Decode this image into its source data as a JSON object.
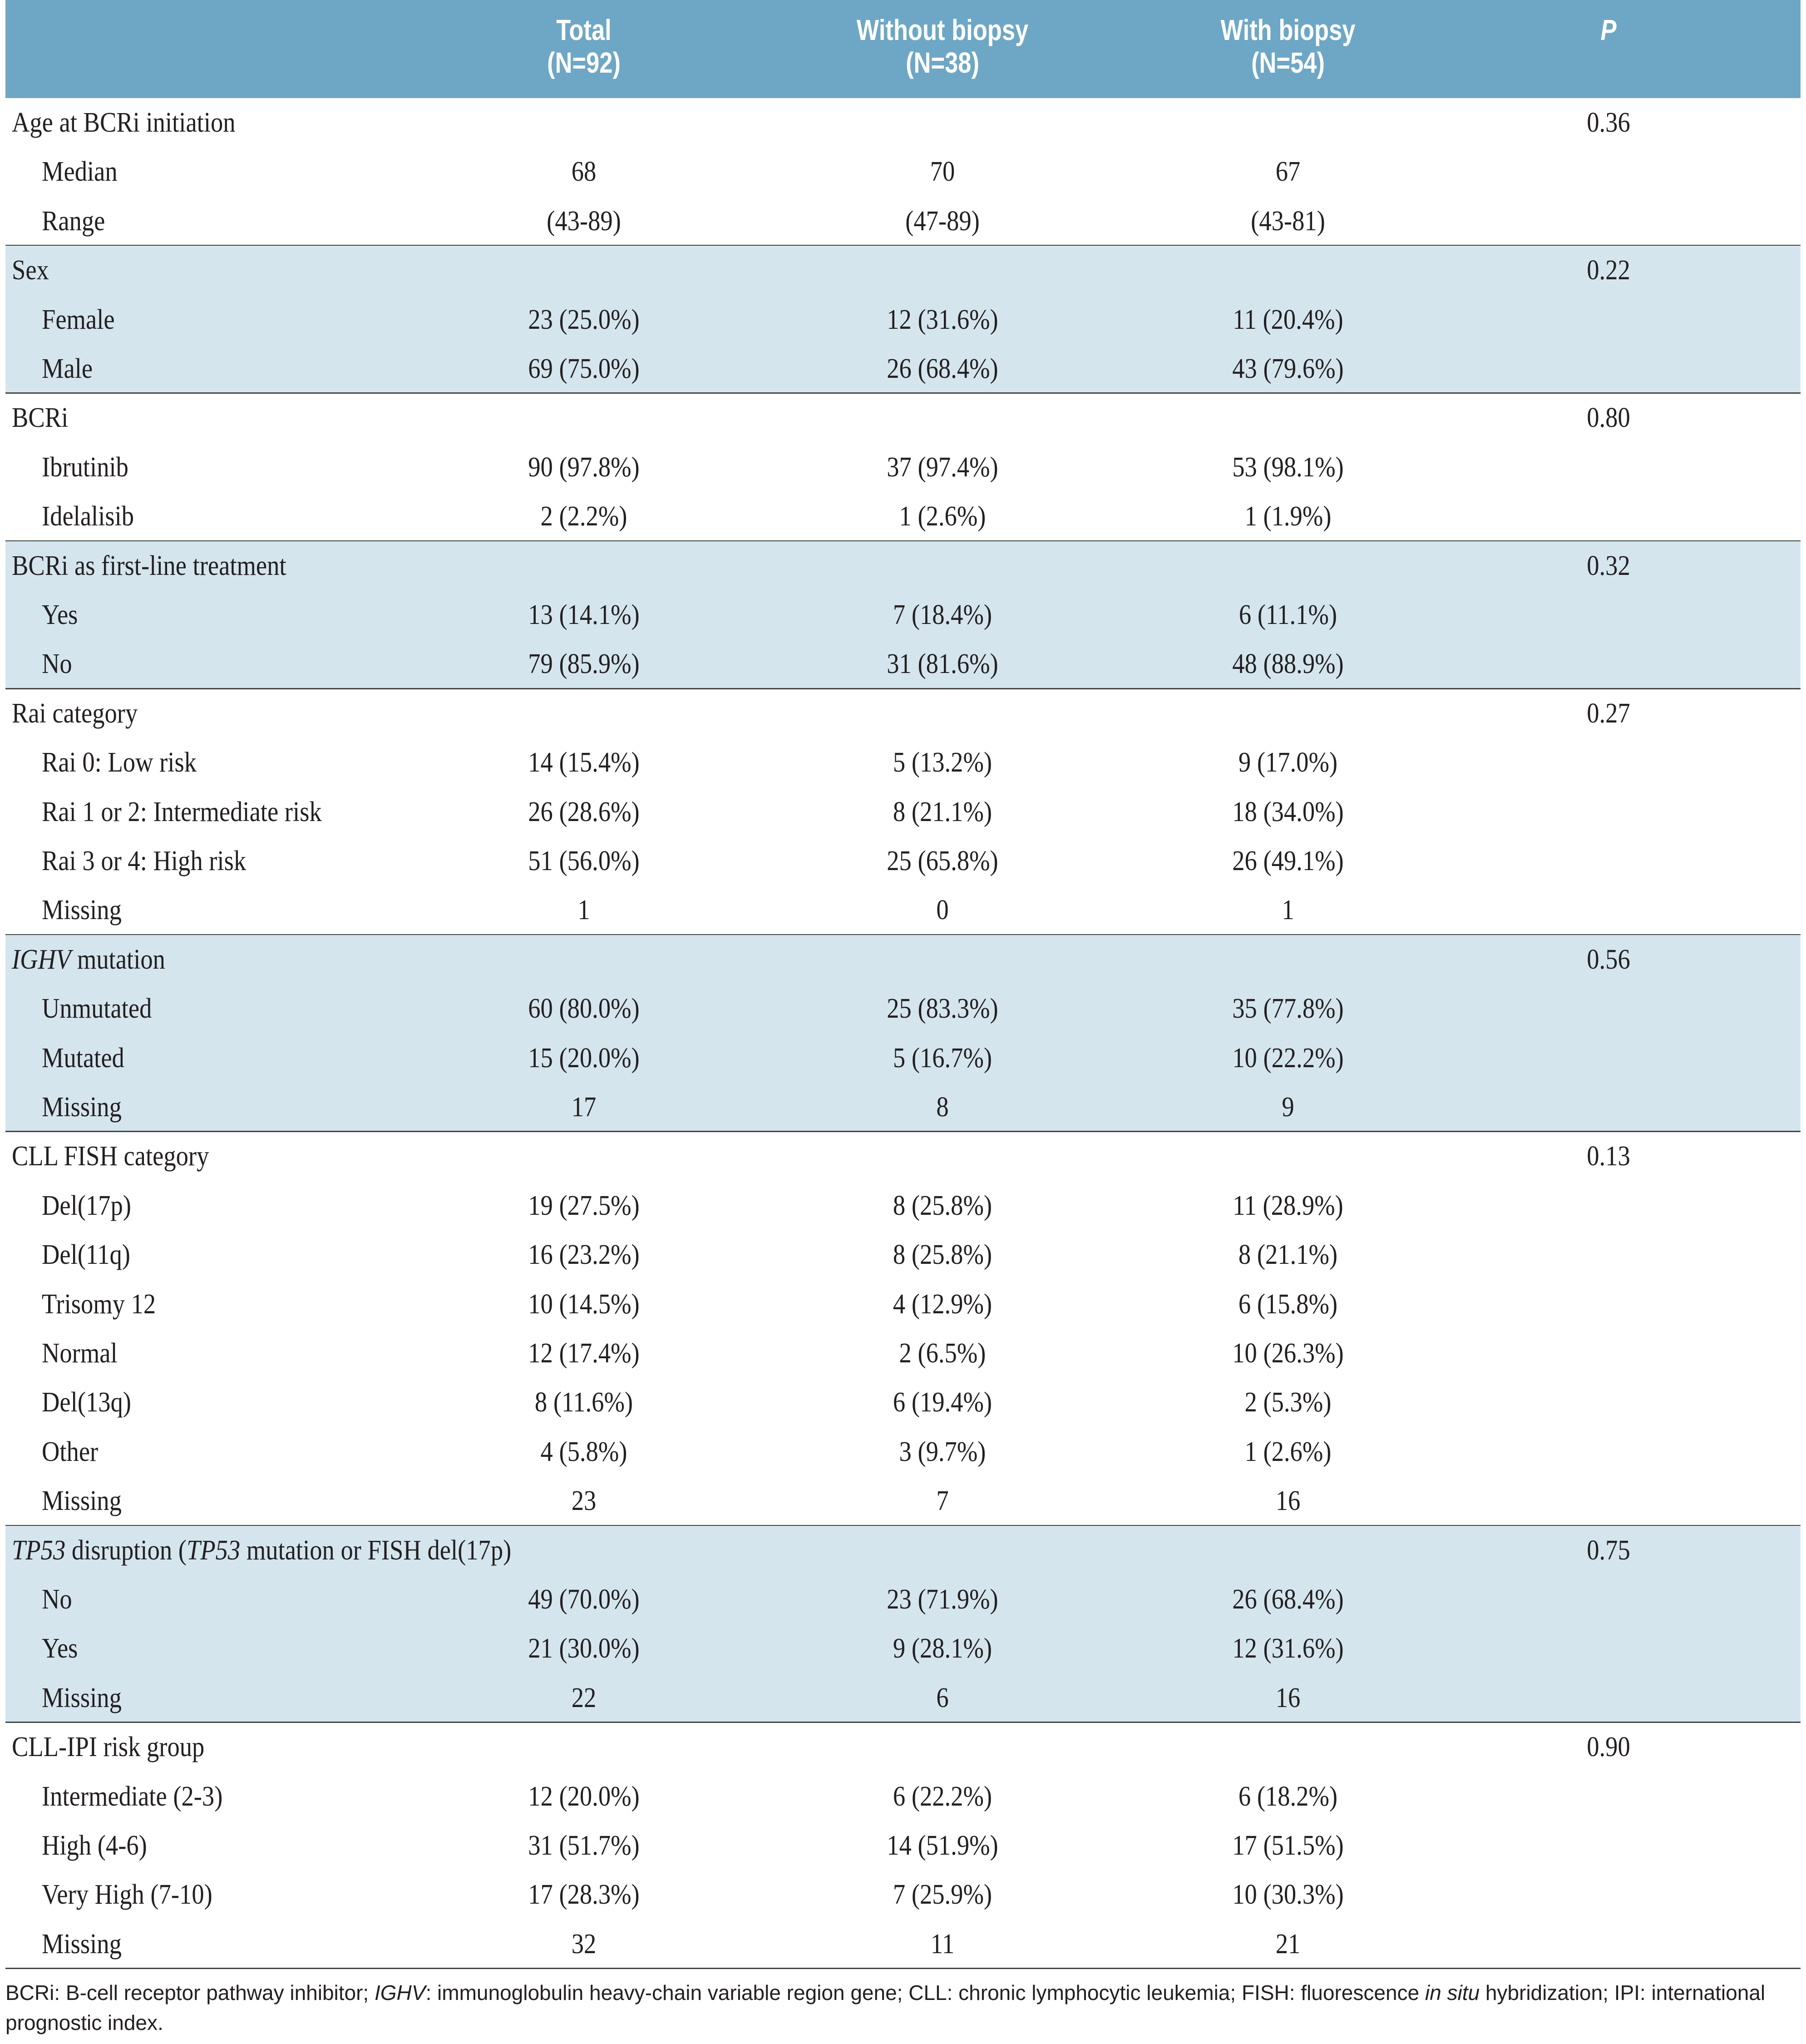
{
  "table": {
    "header": {
      "columns": [
        {
          "title": "Total",
          "n": "(N=92)"
        },
        {
          "title": "Without biopsy",
          "n": "(N=38)"
        },
        {
          "title": "With biopsy",
          "n": "(N=54)"
        }
      ],
      "p": "P"
    },
    "groups": [
      {
        "label": [
          {
            "text": "Age at BCRi initiation"
          }
        ],
        "p": "0.36",
        "shaded": false,
        "rows": [
          {
            "label": "Median",
            "cells": [
              "68",
              "70",
              "67"
            ]
          },
          {
            "label": "Range",
            "cells": [
              "(43-89)",
              "(47-89)",
              "(43-81)"
            ]
          }
        ]
      },
      {
        "label": [
          {
            "text": "Sex"
          }
        ],
        "p": "0.22",
        "shaded": true,
        "rows": [
          {
            "label": "Female",
            "cells": [
              "23 (25.0%)",
              "12 (31.6%)",
              "11 (20.4%)"
            ]
          },
          {
            "label": "Male",
            "cells": [
              "69 (75.0%)",
              "26 (68.4%)",
              "43 (79.6%)"
            ]
          }
        ]
      },
      {
        "label": [
          {
            "text": "BCRi"
          }
        ],
        "p": "0.80",
        "shaded": false,
        "rows": [
          {
            "label": "Ibrutinib",
            "cells": [
              "90 (97.8%)",
              "37 (97.4%)",
              "53 (98.1%)"
            ]
          },
          {
            "label": "Idelalisib",
            "cells": [
              "2 (2.2%)",
              "1 (2.6%)",
              "1 (1.9%)"
            ]
          }
        ]
      },
      {
        "label": [
          {
            "text": "BCRi as first-line treatment"
          }
        ],
        "p": "0.32",
        "shaded": true,
        "rows": [
          {
            "label": "Yes",
            "cells": [
              "13 (14.1%)",
              "7 (18.4%)",
              "6 (11.1%)"
            ]
          },
          {
            "label": "No",
            "cells": [
              "79 (85.9%)",
              "31 (81.6%)",
              "48 (88.9%)"
            ]
          }
        ]
      },
      {
        "label": [
          {
            "text": "Rai category"
          }
        ],
        "p": "0.27",
        "shaded": false,
        "rows": [
          {
            "label": "Rai 0: Low risk",
            "cells": [
              "14 (15.4%)",
              "5 (13.2%)",
              "9 (17.0%)"
            ]
          },
          {
            "label": "Rai 1 or 2: Intermediate risk",
            "cells": [
              "26 (28.6%)",
              "8 (21.1%)",
              "18 (34.0%)"
            ]
          },
          {
            "label": "Rai 3 or 4: High risk",
            "cells": [
              "51 (56.0%)",
              "25 (65.8%)",
              "26 (49.1%)"
            ]
          },
          {
            "label": "Missing",
            "cells": [
              "1",
              "0",
              "1"
            ]
          }
        ]
      },
      {
        "label": [
          {
            "text": "IGHV",
            "italic": true
          },
          {
            "text": " mutation"
          }
        ],
        "p": "0.56",
        "shaded": true,
        "rows": [
          {
            "label": "Unmutated",
            "cells": [
              "60 (80.0%)",
              "25 (83.3%)",
              "35 (77.8%)"
            ]
          },
          {
            "label": "Mutated",
            "cells": [
              "15 (20.0%)",
              "5 (16.7%)",
              "10 (22.2%)"
            ]
          },
          {
            "label": "Missing",
            "cells": [
              "17",
              "8",
              "9"
            ]
          }
        ]
      },
      {
        "label": [
          {
            "text": "CLL FISH category"
          }
        ],
        "p": "0.13",
        "shaded": false,
        "rows": [
          {
            "label": "Del(17p)",
            "cells": [
              "19 (27.5%)",
              "8 (25.8%)",
              "11 (28.9%)"
            ]
          },
          {
            "label": "Del(11q)",
            "cells": [
              "16 (23.2%)",
              "8 (25.8%)",
              "8 (21.1%)"
            ]
          },
          {
            "label": "Trisomy 12",
            "cells": [
              "10 (14.5%)",
              "4 (12.9%)",
              "6 (15.8%)"
            ]
          },
          {
            "label": "Normal",
            "cells": [
              "12 (17.4%)",
              "2 (6.5%)",
              "10 (26.3%)"
            ]
          },
          {
            "label": "Del(13q)",
            "cells": [
              "8 (11.6%)",
              "6 (19.4%)",
              "2 (5.3%)"
            ]
          },
          {
            "label": "Other",
            "cells": [
              "4 (5.8%)",
              "3 (9.7%)",
              "1 (2.6%)"
            ]
          },
          {
            "label": "Missing",
            "cells": [
              "23",
              "7",
              "16"
            ]
          }
        ]
      },
      {
        "label": [
          {
            "text": "TP53",
            "italic": true
          },
          {
            "text": " disruption ("
          },
          {
            "text": "TP53",
            "italic": true
          },
          {
            "text": " mutation or FISH del(17p)"
          }
        ],
        "p": "0.75",
        "shaded": true,
        "rows": [
          {
            "label": "No",
            "cells": [
              "49 (70.0%)",
              "23 (71.9%)",
              "26 (68.4%)"
            ]
          },
          {
            "label": "Yes",
            "cells": [
              "21 (30.0%)",
              "9 (28.1%)",
              "12 (31.6%)"
            ]
          },
          {
            "label": "Missing",
            "cells": [
              "22",
              "6",
              "16"
            ]
          }
        ]
      },
      {
        "label": [
          {
            "text": "CLL-IPI risk group"
          }
        ],
        "p": "0.90",
        "shaded": false,
        "rows": [
          {
            "label": "Intermediate (2-3)",
            "cells": [
              "12 (20.0%)",
              "6 (22.2%)",
              "6 (18.2%)"
            ]
          },
          {
            "label": "High (4-6)",
            "cells": [
              "31 (51.7%)",
              "14 (51.9%)",
              "17 (51.5%)"
            ]
          },
          {
            "label": "Very High (7-10)",
            "cells": [
              "17 (28.3%)",
              "7 (25.9%)",
              "10 (30.3%)"
            ]
          },
          {
            "label": "Missing",
            "cells": [
              "32",
              "11",
              "21"
            ]
          }
        ]
      }
    ]
  },
  "footnote": [
    {
      "text": "BCRi: B-cell receptor pathway inhibitor; "
    },
    {
      "text": "IGHV",
      "italic": true
    },
    {
      "text": ": immunoglobulin heavy-chain variable region gene; CLL: chronic lymphocytic leukemia; FISH: fluorescence "
    },
    {
      "text": "in situ",
      "italic": true
    },
    {
      "text": " hybridization; IPI: international prognostic index."
    }
  ]
}
